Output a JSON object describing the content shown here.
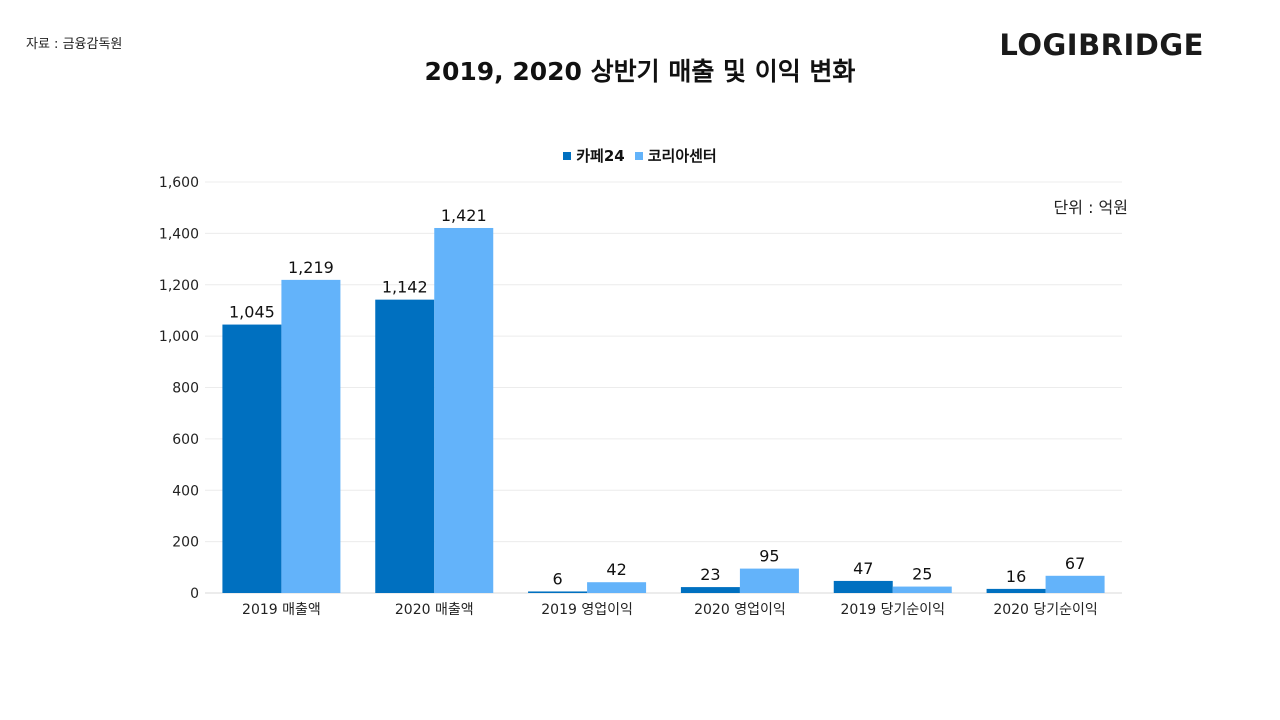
{
  "source_label": "자료 : 금융감독원",
  "brand": "LOGIBRIDGE",
  "unit_label": "단위 : 억원",
  "colors": {
    "series1": "#0070C0",
    "series2": "#63B3FA",
    "grid": "#ececec",
    "axis": "#d9d9d9"
  },
  "chart_data": {
    "type": "bar",
    "title": "2019, 2020 상반기 매출 및 이익 변화",
    "categories": [
      "2019 매출액",
      "2020 매출액",
      "2019 영업이익",
      "2020 영업이익",
      "2019 당기순이익",
      "2020 당기순이익"
    ],
    "series": [
      {
        "name": "카페24",
        "values": [
          1045,
          1142,
          6,
          23,
          47,
          16
        ]
      },
      {
        "name": "코리아센터",
        "values": [
          1219,
          1421,
          42,
          95,
          25,
          67
        ]
      }
    ],
    "yticks": [
      "0",
      "200",
      "400",
      "600",
      "800",
      "1,000",
      "1,200",
      "1,400",
      "1,600"
    ],
    "ylim": [
      0,
      1600
    ],
    "legend_position": "top",
    "xlabel": "",
    "ylabel": ""
  }
}
